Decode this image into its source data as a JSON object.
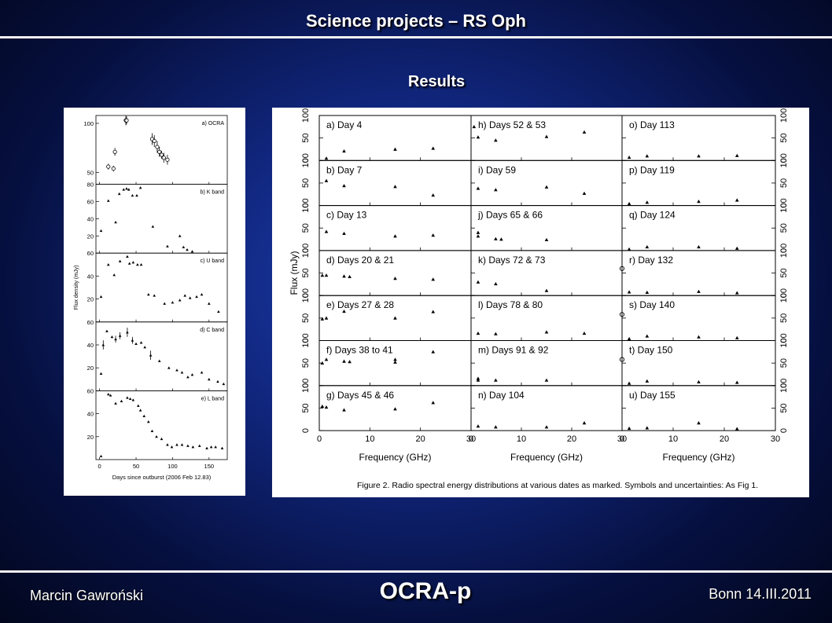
{
  "header": {
    "title": "Science projects – RS Oph",
    "subtitle": "Results"
  },
  "footer": {
    "author": "Marcin Gawroński",
    "project": "OCRA-p",
    "place_date": "Bonn 14.III.2011"
  },
  "chart_data": [
    {
      "type": "scatter",
      "xlabel": "Days since outburst (2006 Feb 12.83)",
      "ylabel": "Flux density (mJy)",
      "xticks": [
        0,
        50,
        100,
        150
      ],
      "xlim": [
        -5,
        175
      ],
      "panels": [
        {
          "label": "a) OCRA",
          "ylim": [
            38,
            108
          ],
          "yticks": [
            50,
            100
          ],
          "points": [
            [
              12,
              56
            ],
            [
              19,
              54
            ],
            [
              21,
              71
            ],
            [
              36,
              103
            ],
            [
              37,
              103
            ],
            [
              72,
              84
            ],
            [
              75,
              82
            ],
            [
              79,
              76
            ],
            [
              82,
              71
            ],
            [
              85,
              68
            ],
            [
              88,
              65
            ],
            [
              93,
              63
            ]
          ],
          "errors": [
            3,
            3,
            4,
            5,
            4,
            6,
            6,
            6,
            5,
            4,
            5,
            5
          ]
        },
        {
          "label": "b) K band",
          "ylim": [
            0,
            80
          ],
          "yticks": [
            20,
            40,
            60,
            80
          ],
          "points": [
            [
              2,
              26
            ],
            [
              12,
              61
            ],
            [
              22,
              36
            ],
            [
              27,
              69
            ],
            [
              33,
              74
            ],
            [
              37,
              75
            ],
            [
              40,
              74
            ],
            [
              45,
              67
            ],
            [
              51,
              67
            ],
            [
              56,
              76
            ],
            [
              73,
              31
            ],
            [
              93,
              8
            ],
            [
              110,
              20
            ],
            [
              115,
              7
            ],
            [
              120,
              4
            ],
            [
              127,
              2
            ]
          ]
        },
        {
          "label": "c) U band",
          "ylim": [
            0,
            60
          ],
          "yticks": [
            20,
            40,
            60
          ],
          "points": [
            [
              2,
              22
            ],
            [
              12,
              50
            ],
            [
              20,
              41
            ],
            [
              28,
              53
            ],
            [
              38,
              57
            ],
            [
              41,
              51
            ],
            [
              46,
              52
            ],
            [
              52,
              50
            ],
            [
              57,
              50
            ],
            [
              67,
              24
            ],
            [
              75,
              23
            ],
            [
              89,
              16
            ],
            [
              100,
              17
            ],
            [
              110,
              19
            ],
            [
              117,
              23
            ],
            [
              124,
              21
            ],
            [
              133,
              22
            ],
            [
              140,
              24
            ],
            [
              150,
              16
            ],
            [
              163,
              9
            ]
          ]
        },
        {
          "label": "d) C band",
          "ylim": [
            0,
            60
          ],
          "yticks": [
            20,
            40,
            60
          ],
          "points": [
            [
              2,
              15
            ],
            [
              5,
              40
            ],
            [
              10,
              52
            ],
            [
              17,
              47
            ],
            [
              22,
              45
            ],
            [
              28,
              48
            ],
            [
              38,
              51
            ],
            [
              45,
              44
            ],
            [
              50,
              41
            ],
            [
              57,
              42
            ],
            [
              62,
              38
            ],
            [
              70,
              31
            ],
            [
              82,
              26
            ],
            [
              95,
              20
            ],
            [
              106,
              18
            ],
            [
              113,
              16
            ],
            [
              121,
              12
            ],
            [
              127,
              14
            ],
            [
              140,
              16
            ],
            [
              150,
              10
            ],
            [
              162,
              8
            ],
            [
              170,
              6
            ]
          ],
          "errors": [
            0,
            4,
            0,
            0,
            3,
            3,
            4,
            3,
            0,
            0,
            0,
            4,
            0,
            0,
            0,
            0,
            0,
            0,
            0,
            0,
            0,
            0
          ]
        },
        {
          "label": "e) L band",
          "ylim": [
            0,
            60
          ],
          "yticks": [
            20,
            40,
            60
          ],
          "points": [
            [
              2,
              3
            ],
            [
              12,
              57
            ],
            [
              15,
              56
            ],
            [
              22,
              49
            ],
            [
              30,
              51
            ],
            [
              38,
              54
            ],
            [
              42,
              53
            ],
            [
              46,
              52
            ],
            [
              53,
              47
            ],
            [
              56,
              43
            ],
            [
              61,
              38
            ],
            [
              67,
              33
            ],
            [
              72,
              25
            ],
            [
              78,
              20
            ],
            [
              85,
              18
            ],
            [
              93,
              13
            ],
            [
              99,
              11
            ],
            [
              106,
              13
            ],
            [
              113,
              13
            ],
            [
              121,
              12
            ],
            [
              128,
              11
            ],
            [
              137,
              12
            ],
            [
              147,
              10
            ],
            [
              153,
              11
            ],
            [
              159,
              11
            ],
            [
              168,
              10
            ]
          ]
        }
      ]
    },
    {
      "type": "scatter",
      "title": "Figure 2. Radio spectral energy distributions at various dates as marked. Symbols and uncertainties: As Fig 1.",
      "xlabel": "Frequency (GHz)",
      "ylabel": "Flux (mJy)",
      "xlim": [
        0,
        30
      ],
      "ylim": [
        0,
        100
      ],
      "xticks": [
        0,
        10,
        20,
        30
      ],
      "yticks": [
        0,
        50,
        100
      ],
      "columns": [
        [
          {
            "label": "a) Day 4",
            "points": [
              [
                1.4,
                5
              ],
              [
                4.9,
                21
              ],
              [
                15,
                25
              ],
              [
                22.5,
                27
              ]
            ]
          },
          {
            "label": "b) Day 7",
            "points": [
              [
                1.4,
                55
              ],
              [
                4.9,
                44
              ],
              [
                15,
                42
              ],
              [
                22.5,
                23
              ]
            ]
          },
          {
            "label": "c) Day 13",
            "points": [
              [
                1.4,
                42
              ],
              [
                4.9,
                38
              ],
              [
                15,
                32
              ],
              [
                22.5,
                34
              ]
            ]
          },
          {
            "label": "d) Days 20 & 21",
            "points": [
              [
                0.6,
                45
              ],
              [
                1.4,
                45
              ],
              [
                4.9,
                43
              ],
              [
                6,
                42
              ],
              [
                15,
                38
              ],
              [
                22.5,
                36
              ]
            ]
          },
          {
            "label": "e) Days 27 & 28",
            "points": [
              [
                0.6,
                48
              ],
              [
                1.4,
                50
              ],
              [
                4.9,
                65
              ],
              [
                15,
                50
              ],
              [
                22.5,
                64
              ]
            ]
          },
          {
            "label": "f) Days 38 to 41",
            "points": [
              [
                0.6,
                50
              ],
              [
                1.4,
                58
              ],
              [
                4.9,
                54
              ],
              [
                6,
                53
              ],
              [
                15,
                52
              ],
              [
                15,
                58
              ],
              [
                22.5,
                75
              ]
            ]
          },
          {
            "label": "g) Days 45 & 46",
            "points": [
              [
                0.6,
                54
              ],
              [
                1.4,
                52
              ],
              [
                4.9,
                46
              ],
              [
                15,
                48
              ],
              [
                22.5,
                62
              ]
            ]
          }
        ],
        [
          {
            "label": "h) Days 52 & 53",
            "points": [
              [
                0.6,
                75
              ],
              [
                1.4,
                52
              ],
              [
                4.9,
                45
              ],
              [
                15,
                53
              ],
              [
                22.5,
                63
              ]
            ]
          },
          {
            "label": "i) Day 59",
            "points": [
              [
                1.4,
                38
              ],
              [
                4.9,
                35
              ],
              [
                15,
                41
              ],
              [
                22.5,
                27
              ]
            ]
          },
          {
            "label": "j) Days 65 & 66",
            "points": [
              [
                1.4,
                40
              ],
              [
                1.4,
                32
              ],
              [
                4.9,
                26
              ],
              [
                6,
                25
              ],
              [
                15,
                24
              ]
            ]
          },
          {
            "label": "k) Days 72 & 73",
            "points": [
              [
                1.4,
                30
              ],
              [
                4.9,
                26
              ],
              [
                15,
                11
              ],
              [
                30,
                60
              ]
            ]
          },
          {
            "label": "l) Days 78 & 80",
            "points": [
              [
                1.4,
                16
              ],
              [
                4.9,
                15
              ],
              [
                15,
                19
              ],
              [
                22.5,
                16
              ],
              [
                30,
                58
              ]
            ]
          },
          {
            "label": "m) Days 91 & 92",
            "points": [
              [
                1.4,
                16
              ],
              [
                1.4,
                12
              ],
              [
                4.9,
                12
              ],
              [
                15,
                12
              ],
              [
                30,
                58
              ]
            ]
          },
          {
            "label": "n) Day 104",
            "points": [
              [
                1.4,
                10
              ],
              [
                4.9,
                8
              ],
              [
                15,
                8
              ],
              [
                22.5,
                17
              ]
            ]
          }
        ],
        [
          {
            "label": "o) Day 113",
            "points": [
              [
                1.4,
                7
              ],
              [
                4.9,
                10
              ],
              [
                15,
                10
              ],
              [
                22.5,
                11
              ]
            ]
          },
          {
            "label": "p) Day 119",
            "points": [
              [
                1.4,
                4
              ],
              [
                4.9,
                7
              ],
              [
                15,
                9
              ],
              [
                22.5,
                12
              ]
            ]
          },
          {
            "label": "q) Day 124",
            "points": [
              [
                1.4,
                3
              ],
              [
                4.9,
                8
              ],
              [
                15,
                8
              ],
              [
                22.5,
                5
              ]
            ]
          },
          {
            "label": "r) Day 132",
            "points": [
              [
                1.4,
                8
              ],
              [
                4.9,
                7
              ],
              [
                15,
                9
              ],
              [
                22.5,
                6
              ]
            ]
          },
          {
            "label": "s) Day 140",
            "points": [
              [
                1.4,
                4
              ],
              [
                4.9,
                10
              ],
              [
                15,
                8
              ],
              [
                22.5,
                6
              ]
            ]
          },
          {
            "label": "t) Day 150",
            "points": [
              [
                1.4,
                5
              ],
              [
                4.9,
                10
              ],
              [
                15,
                8
              ],
              [
                22.5,
                7
              ]
            ]
          },
          {
            "label": "u) Day 155",
            "points": [
              [
                1.4,
                5
              ],
              [
                4.9,
                6
              ],
              [
                15,
                17
              ],
              [
                22.5,
                4
              ]
            ]
          }
        ]
      ]
    }
  ]
}
